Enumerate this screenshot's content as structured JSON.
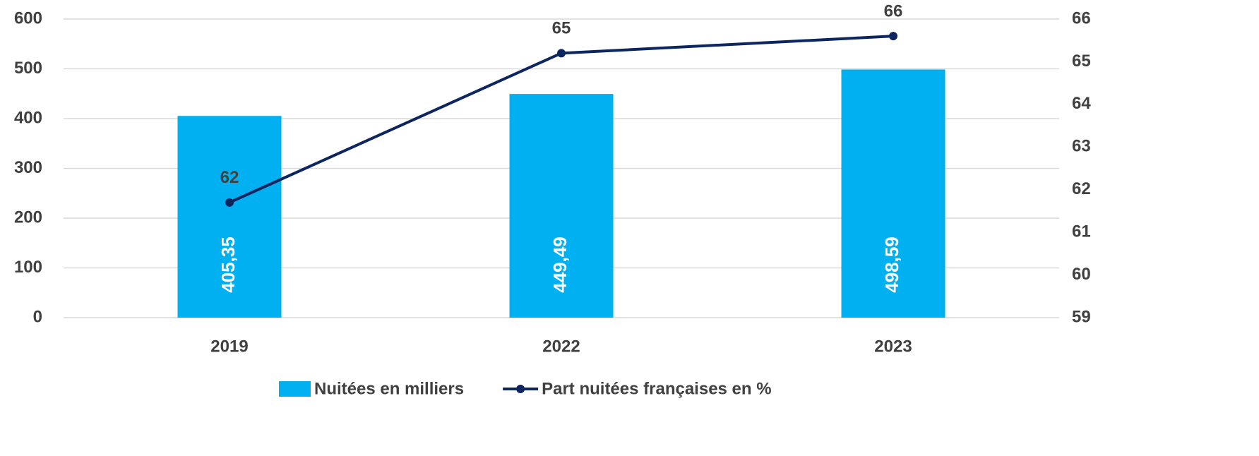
{
  "chart_data": {
    "type": "bar_line",
    "categories": [
      "2019",
      "2022",
      "2023"
    ],
    "series": [
      {
        "name": "Nuitées en milliers",
        "type": "bar",
        "color": "#00b0f0",
        "values": [
          405.35,
          449.49,
          498.59
        ],
        "value_labels": [
          "405,35",
          "449,49",
          "498,59"
        ]
      },
      {
        "name": "Part nuitées françaises en %",
        "type": "line",
        "axis": "y2",
        "color": "#0e2660",
        "values": [
          61.7,
          65.2,
          65.6
        ],
        "value_labels": [
          "62",
          "65",
          "66"
        ]
      }
    ],
    "ylim": [
      0,
      600
    ],
    "yticks": [
      0,
      100,
      200,
      300,
      400,
      500,
      600
    ],
    "y2lim": [
      59,
      66
    ],
    "y2ticks": [
      59,
      60,
      61,
      62,
      63,
      64,
      65,
      66
    ],
    "grid": true,
    "legend": "bottom"
  }
}
